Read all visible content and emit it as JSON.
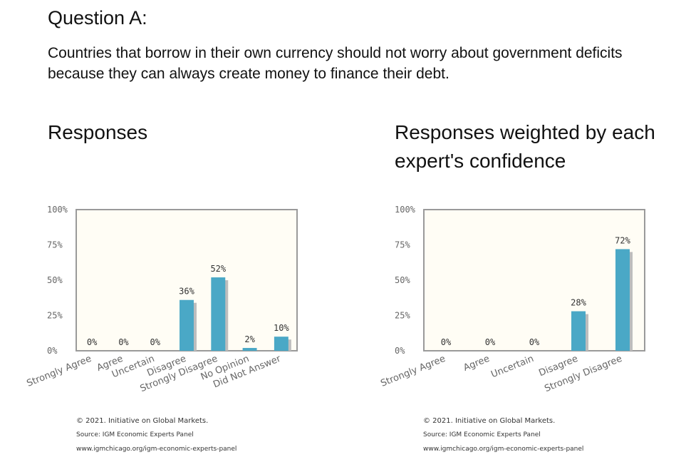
{
  "question": {
    "title": "Question A:",
    "text": "Countries that borrow in their own currency should not worry about government deficits because they can always create money to finance their debt."
  },
  "chart_data": [
    {
      "type": "bar",
      "title": "Responses",
      "categories": [
        "Strongly Agree",
        "Agree",
        "Uncertain",
        "Disagree",
        "Strongly Disagree",
        "No Opinion",
        "Did Not Answer"
      ],
      "values": [
        0,
        0,
        0,
        36,
        52,
        2,
        10
      ],
      "value_labels": [
        "0%",
        "0%",
        "0%",
        "36%",
        "52%",
        "2%",
        "10%"
      ],
      "yticks": [
        "0%",
        "25%",
        "50%",
        "75%",
        "100%"
      ],
      "ylim": [
        0,
        100
      ],
      "grid": false,
      "bar_color": "#4aa8c6"
    },
    {
      "type": "bar",
      "title": "Responses weighted by each expert's confidence",
      "categories": [
        "Strongly Agree",
        "Agree",
        "Uncertain",
        "Disagree",
        "Strongly Disagree"
      ],
      "values": [
        0,
        0,
        0,
        28,
        72
      ],
      "value_labels": [
        "0%",
        "0%",
        "0%",
        "28%",
        "72%"
      ],
      "yticks": [
        "0%",
        "25%",
        "50%",
        "75%",
        "100%"
      ],
      "ylim": [
        0,
        100
      ],
      "grid": false,
      "bar_color": "#4aa8c6"
    }
  ],
  "footer": {
    "copyright": "© 2021. Initiative on Global Markets.",
    "source": "Source: IGM Economic Experts Panel",
    "url": "www.igmchicago.org/igm-economic-experts-panel"
  }
}
